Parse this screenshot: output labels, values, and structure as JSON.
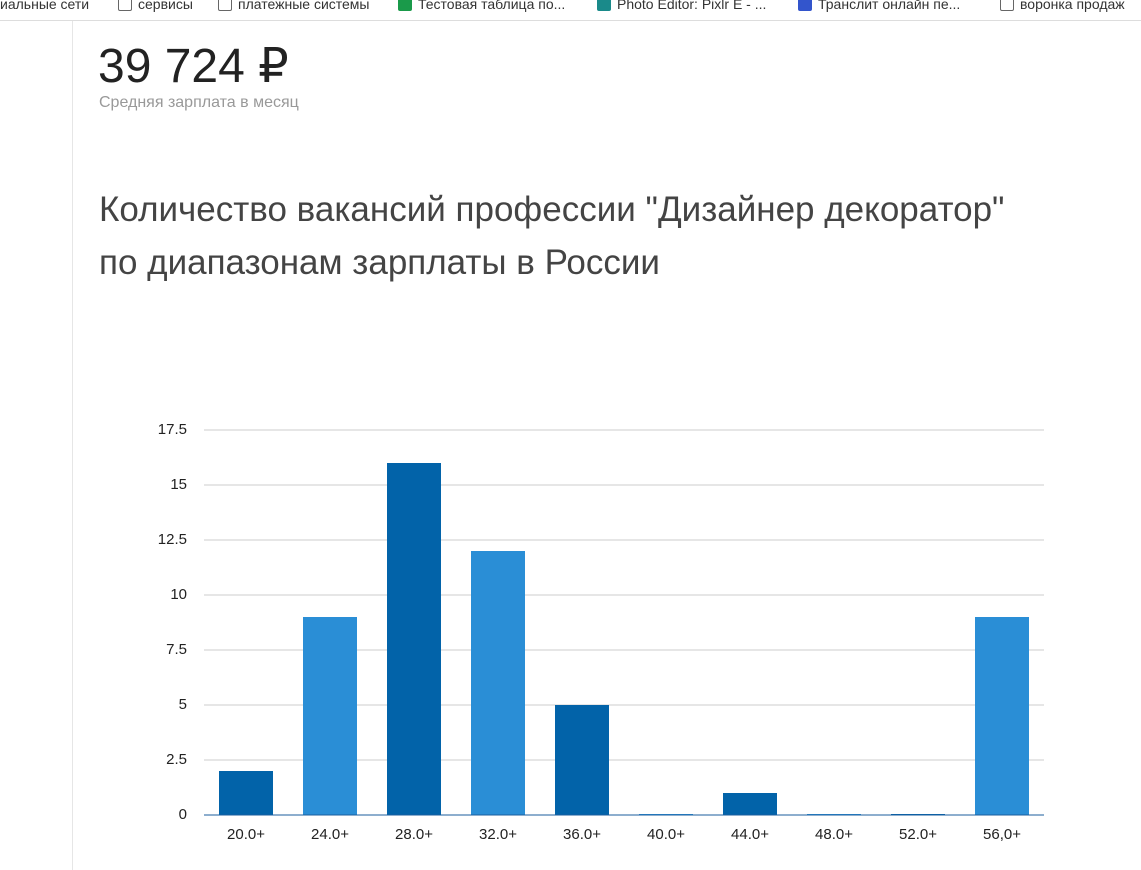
{
  "bookmarks": [
    "циальные сети",
    "сервисы",
    "платежные системы",
    "Тестовая таблица по...",
    "Photo Editor: Pixlr E - ...",
    "Транслит онлайн пе...",
    "воронка продаж"
  ],
  "header": {
    "salary": "39 724 ₽",
    "salary_caption": "Средняя зарплата в месяц"
  },
  "chart_data": {
    "type": "bar",
    "title": [
      "Количество вакансий профессии \"Дизайнер декоратор\"",
      "по диапазонам зарплаты в России"
    ],
    "categories": [
      "20.0+",
      "24.0+",
      "28.0+",
      "32.0+",
      "36.0+",
      "40.0+",
      "44.0+",
      "48.0+",
      "52.0+",
      "56,0+"
    ],
    "values": [
      2,
      9,
      16,
      12,
      5,
      0,
      1,
      0,
      0,
      9
    ],
    "colors": [
      "#0263a9",
      "#2a8ed6"
    ],
    "ylim": [
      0,
      17.5
    ],
    "yticks": [
      0,
      2.5,
      5,
      7.5,
      10,
      12.5,
      15,
      17.5
    ],
    "grid": true
  }
}
